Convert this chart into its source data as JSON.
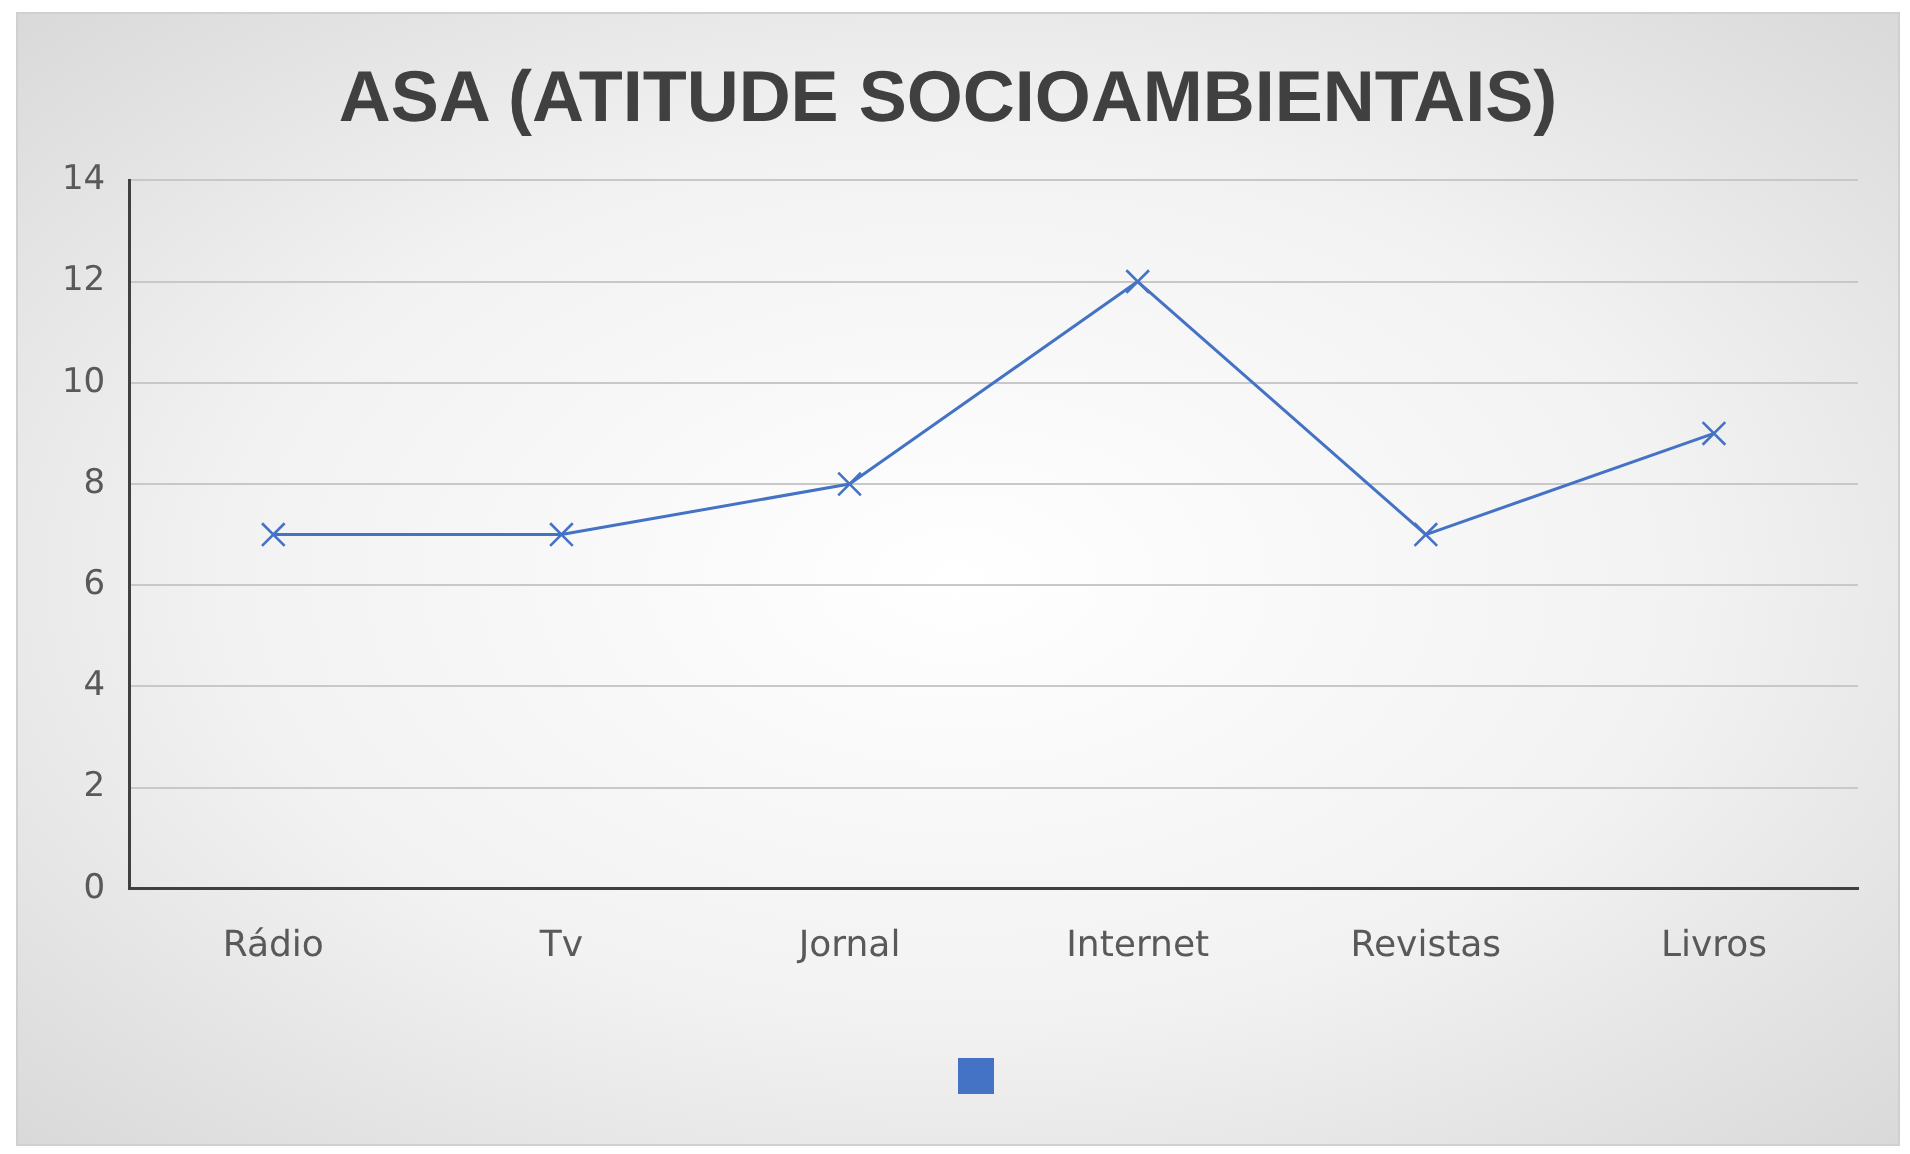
{
  "chart_data": {
    "type": "line",
    "title": "ASA (ATITUDE SOCIOAMBIENTAIS)",
    "categories": [
      "Rádio",
      "Tv",
      "Jornal",
      "Internet",
      "Revistas",
      "Livros"
    ],
    "series": [
      {
        "color": "#4472c4",
        "values": [
          7,
          7,
          8,
          12,
          7,
          9
        ]
      }
    ],
    "ylim": [
      0,
      14
    ],
    "yticks": [
      0,
      2,
      4,
      6,
      8,
      10,
      12,
      14
    ],
    "grid": "y",
    "marker": "cross",
    "line_style": "solid"
  }
}
